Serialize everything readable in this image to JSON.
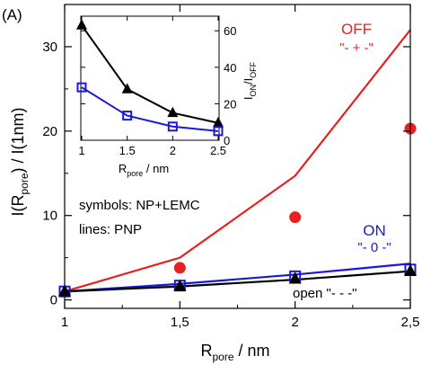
{
  "chart_data": {
    "panel_label": "(A)",
    "type": "line",
    "xlabel": {
      "main": "R",
      "sub": "pore",
      "rest": " / nm"
    },
    "ylabel": {
      "pre": "I(R",
      "sub": "pore",
      "post": ") / I(1nm)"
    },
    "xlim": [
      1,
      2.5
    ],
    "ylim": [
      -1,
      35
    ],
    "x_ticks": [
      1,
      1.5,
      2,
      2.5
    ],
    "x_tick_labels": [
      "1",
      "1,5",
      "2",
      "2,5"
    ],
    "y_ticks": [
      0,
      10,
      20,
      30
    ],
    "y_tick_labels": [
      "0",
      "10",
      "20",
      "30"
    ],
    "legend_text": {
      "symbols": "symbols: NP+LEMC",
      "lines": "lines: PNP"
    },
    "series": [
      {
        "key": "off",
        "label": "OFF",
        "sublabel": "\"- + -\"",
        "color": "#e8201f",
        "lines": {
          "x": [
            1,
            1.5,
            2,
            2.5
          ],
          "y": [
            1,
            5,
            14.7,
            32
          ]
        },
        "symbols": {
          "marker": "circle",
          "x": [
            1.5,
            2,
            2.5
          ],
          "y": [
            3.8,
            9.8,
            20.3
          ]
        }
      },
      {
        "key": "on",
        "label": "ON",
        "sublabel": "\"- 0 -\"",
        "color": "#1a1ad6",
        "lines": {
          "x": [
            1,
            1.5,
            2,
            2.5
          ],
          "y": [
            1,
            1.9,
            3,
            4.3
          ]
        },
        "symbols": {
          "marker": "square-open",
          "x": [
            1,
            1.5,
            2,
            2.5
          ],
          "y": [
            1,
            1.7,
            2.8,
            3.6
          ]
        }
      },
      {
        "key": "open",
        "label": "open \"-  -  -\"",
        "color": "#000000",
        "lines": {
          "x": [
            1,
            1.5,
            2,
            2.5
          ],
          "y": [
            1,
            1.6,
            2.4,
            3.4
          ]
        },
        "symbols": {
          "marker": "triangle",
          "x": [
            1,
            1.5,
            2,
            2.5
          ],
          "y": [
            1,
            1.6,
            2.5,
            3.4
          ]
        }
      }
    ],
    "inset": {
      "xlabel": {
        "main": "R",
        "sub": "pore",
        "rest": " / nm"
      },
      "ylabel": {
        "pre": "I",
        "sub1": "ON",
        "mid": "/I",
        "sub2": "OFF"
      },
      "xlim": [
        1,
        2.5
      ],
      "ylim": [
        0,
        68
      ],
      "x_ticks": [
        1,
        1.5,
        2,
        2.5
      ],
      "x_tick_labels": [
        "1",
        "1.5",
        "2",
        "2.5"
      ],
      "y_ticks": [
        0,
        20,
        40,
        60
      ],
      "y_tick_labels": [
        "0",
        "20",
        "40",
        "60"
      ],
      "y_axis_side": "right",
      "series": [
        {
          "key": "pnp",
          "color": "#000000",
          "marker": "triangle",
          "x": [
            1,
            1.5,
            2,
            2.5
          ],
          "y": [
            63,
            28,
            15,
            9.5
          ]
        },
        {
          "key": "nplemc",
          "color": "#1a1ad6",
          "marker": "square-open",
          "x": [
            1,
            1.5,
            2,
            2.5
          ],
          "y": [
            29,
            13.5,
            7.5,
            5
          ]
        }
      ]
    }
  }
}
